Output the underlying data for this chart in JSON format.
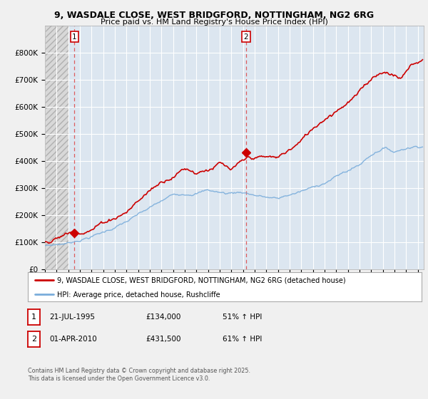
{
  "title_line1": "9, WASDALE CLOSE, WEST BRIDGFORD, NOTTINGHAM, NG2 6RG",
  "title_line2": "Price paid vs. HM Land Registry's House Price Index (HPI)",
  "background_color": "#f0f0f0",
  "plot_bg_color": "#dce6f0",
  "grid_color": "#ffffff",
  "sale1": {
    "date_num": 1995.54,
    "price": 134000,
    "label": "1"
  },
  "sale2": {
    "date_num": 2010.25,
    "price": 431500,
    "label": "2"
  },
  "legend_entry1": "9, WASDALE CLOSE, WEST BRIDGFORD, NOTTINGHAM, NG2 6RG (detached house)",
  "legend_entry2": "HPI: Average price, detached house, Rushcliffe",
  "footer_line1": "Contains HM Land Registry data © Crown copyright and database right 2025.",
  "footer_line2": "This data is licensed under the Open Government Licence v3.0.",
  "table_row1": [
    "1",
    "21-JUL-1995",
    "£134,000",
    "51% ↑ HPI"
  ],
  "table_row2": [
    "2",
    "01-APR-2010",
    "£431,500",
    "61% ↑ HPI"
  ],
  "red_line_color": "#cc0000",
  "blue_line_color": "#7aaddb",
  "marker_color": "#cc0000",
  "dashed_line_color": "#dd4444",
  "ylim": [
    0,
    900000
  ],
  "xlim_start": 1993.0,
  "xlim_end": 2025.5,
  "hatch_end": 1995.0
}
